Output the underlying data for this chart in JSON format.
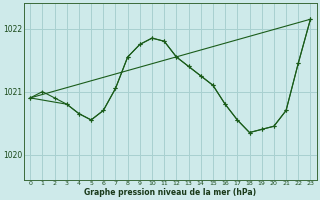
{
  "title": "Graphe pression niveau de la mer (hPa)",
  "background_color": "#ceeaea",
  "grid_color": "#a8d0d0",
  "line_color": "#1a5c1a",
  "xlim": [
    -0.5,
    23.5
  ],
  "ylim": [
    1019.6,
    1022.4
  ],
  "yticks": [
    1020,
    1021,
    1022
  ],
  "xticks": [
    0,
    1,
    2,
    3,
    4,
    5,
    6,
    7,
    8,
    9,
    10,
    11,
    12,
    13,
    14,
    15,
    16,
    17,
    18,
    19,
    20,
    21,
    22,
    23
  ],
  "series_main": {
    "x": [
      0,
      1,
      2,
      3,
      4,
      5,
      6,
      7,
      8,
      9,
      10,
      11,
      12,
      13,
      14,
      15,
      16,
      17,
      18,
      19,
      20,
      21,
      22,
      23
    ],
    "y": [
      1020.9,
      1021.0,
      1020.9,
      1020.8,
      1020.65,
      1020.55,
      1020.7,
      1021.05,
      1021.55,
      1021.75,
      1021.85,
      1021.8,
      1021.55,
      1021.4,
      1021.25,
      1021.1,
      1020.8,
      1020.55,
      1020.35,
      1020.4,
      1020.45,
      1020.7,
      1021.45,
      1022.15
    ]
  },
  "series_sub": {
    "x": [
      0,
      3,
      4,
      5,
      6,
      7,
      8,
      9,
      10,
      11,
      12,
      13,
      14,
      15,
      16,
      17,
      18,
      19,
      20,
      21,
      22,
      23
    ],
    "y": [
      1020.9,
      1020.8,
      1020.65,
      1020.55,
      1020.7,
      1021.05,
      1021.55,
      1021.75,
      1021.85,
      1021.8,
      1021.55,
      1021.4,
      1021.25,
      1021.1,
      1020.8,
      1020.55,
      1020.35,
      1020.4,
      1020.45,
      1020.7,
      1021.45,
      1022.15
    ]
  },
  "series_line": {
    "x": [
      0,
      23
    ],
    "y": [
      1020.9,
      1022.15
    ]
  }
}
